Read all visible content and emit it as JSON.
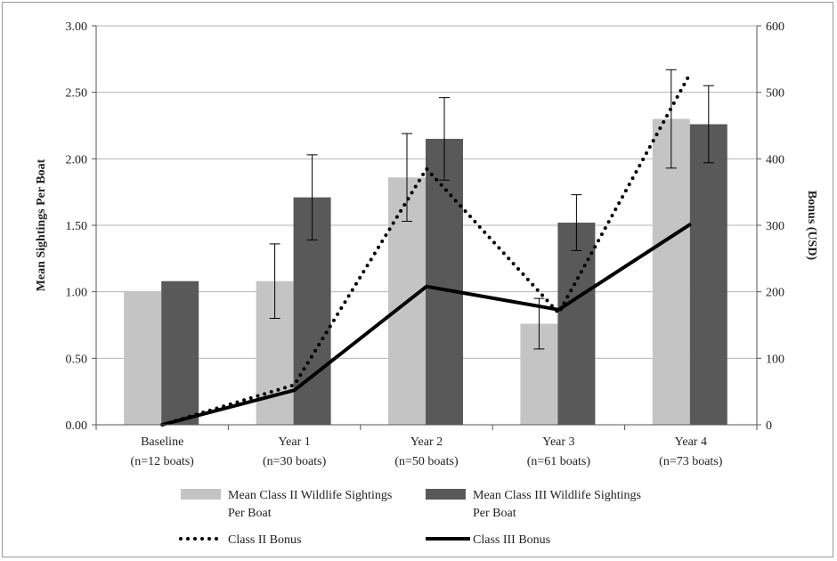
{
  "chart_data": {
    "type": "bar",
    "categories": [
      [
        "Baseline",
        "(n=12 boats)"
      ],
      [
        "Year 1",
        "(n=30 boats)"
      ],
      [
        "Year 2",
        "(n=50 boats)"
      ],
      [
        "Year 3",
        "(n=61 boats)"
      ],
      [
        "Year 4",
        "(n=73 boats)"
      ]
    ],
    "ylabel": "Mean Sightings Per Boat",
    "y2label": "Bonus (USD)",
    "ylim": [
      0,
      3
    ],
    "y2lim": [
      0,
      600
    ],
    "yticks": [
      "0.00",
      "0.50",
      "1.00",
      "1.50",
      "2.00",
      "2.50",
      "3.00"
    ],
    "y2ticks": [
      "0",
      "100",
      "200",
      "300",
      "400",
      "500",
      "600"
    ],
    "grid": true,
    "legend_position": "bottom",
    "bar_series": [
      {
        "legend": [
          "Mean Class II  Wildlife Sightings",
          "Per Boat"
        ],
        "color": "#c4c4c4",
        "values": [
          1.0,
          1.08,
          1.86,
          0.76,
          2.3
        ],
        "error": [
          null,
          0.28,
          0.33,
          0.19,
          0.37
        ]
      },
      {
        "legend": [
          "Mean Class III  Wildlife Sightings",
          "Per Boat"
        ],
        "color": "#595959",
        "values": [
          1.08,
          1.71,
          2.15,
          1.52,
          2.26
        ],
        "error": [
          null,
          0.32,
          0.31,
          0.21,
          0.29
        ]
      }
    ],
    "line_series": [
      {
        "name": "Class II Bonus",
        "style": "dotted",
        "color": "#000000",
        "values": [
          0,
          60,
          385,
          168,
          530
        ]
      },
      {
        "name": "Class III Bonus",
        "style": "solid",
        "color": "#000000",
        "values": [
          0,
          52,
          208,
          173,
          302
        ]
      }
    ]
  }
}
